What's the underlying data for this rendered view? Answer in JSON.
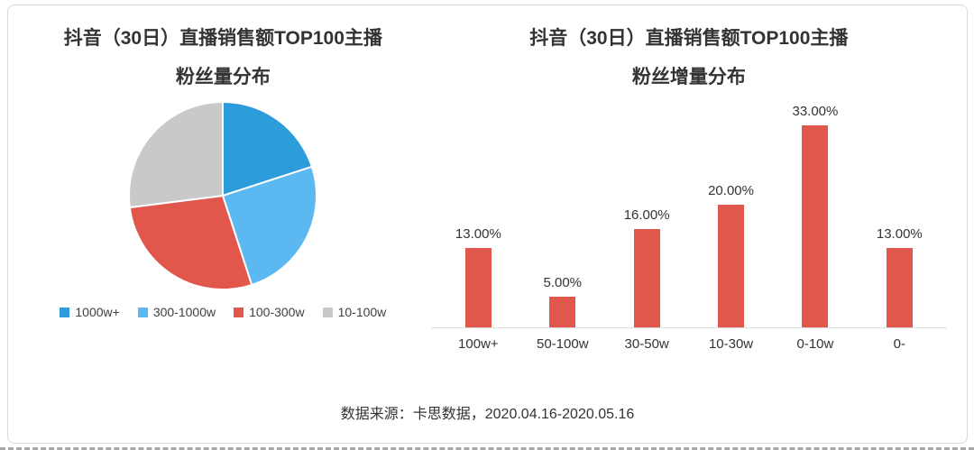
{
  "source_note": "数据来源：卡思数据，2020.04.16-2020.05.16",
  "chart_data": [
    {
      "type": "pie",
      "title_line1": "抖音（30日）直播销售额TOP100主播",
      "title_line2": "粉丝量分布",
      "labels": [
        "1000w+",
        "300-1000w",
        "100-300w",
        "10-100w"
      ],
      "values": [
        20,
        25,
        28,
        27
      ],
      "colors": [
        "#2D9CDB",
        "#5BB8F0",
        "#E2574C",
        "#C9C9C9"
      ],
      "start_angle": "top",
      "direction": "clockwise",
      "legend_position": "bottom"
    },
    {
      "type": "bar",
      "title_line1": "抖音（30日）直播销售额TOP100主播",
      "title_line2": "粉丝增量分布",
      "categories": [
        "100w+",
        "50-100w",
        "30-50w",
        "10-30w",
        "0-10w",
        "0-"
      ],
      "values": [
        13,
        5,
        16,
        20,
        33,
        13
      ],
      "data_labels": [
        "13.00%",
        "5.00%",
        "16.00%",
        "20.00%",
        "33.00%",
        "13.00%"
      ],
      "bar_color": "#E2574C",
      "ylim": [
        0,
        34
      ],
      "grid": false,
      "legend": "none"
    }
  ]
}
